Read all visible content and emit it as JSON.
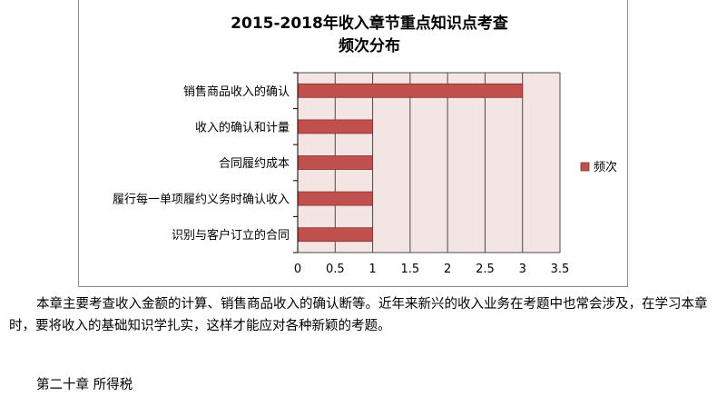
{
  "chart_data": {
    "type": "bar",
    "orientation": "horizontal",
    "title_line1": "2015-2018年收入章节重点知识点考查",
    "title_line2": "频次分布",
    "categories": [
      "销售商品收入的确认",
      "收入的确认和计量",
      "合同履约成本",
      "履行每一单项履约义务时确认收入",
      "识别与客户订立的合同"
    ],
    "series": [
      {
        "name": "频次",
        "values": [
          3,
          1,
          1,
          1,
          1
        ]
      }
    ],
    "xlim": [
      0,
      3.5
    ],
    "xticks": [
      "0",
      "0.5",
      "1",
      "1.5",
      "2",
      "2.5",
      "3",
      "3.5"
    ],
    "grid": true,
    "legend": "right",
    "colors": {
      "bar": "#c0504d",
      "bar_border": "#8b2f2c",
      "plot_bg": "#f2e5e4",
      "grid": "#4a4a4a"
    }
  },
  "body_text": {
    "paragraph1": "本章主要考查收入金额的计算、销售商品收入的确认断等。近年来新兴的收入业务在考题中也常会涉及，在学习本章时，要将收入的基础知识学扎实，这样才能应对各种新颖的考题。",
    "chapter_heading": "第二十章  所得税"
  }
}
